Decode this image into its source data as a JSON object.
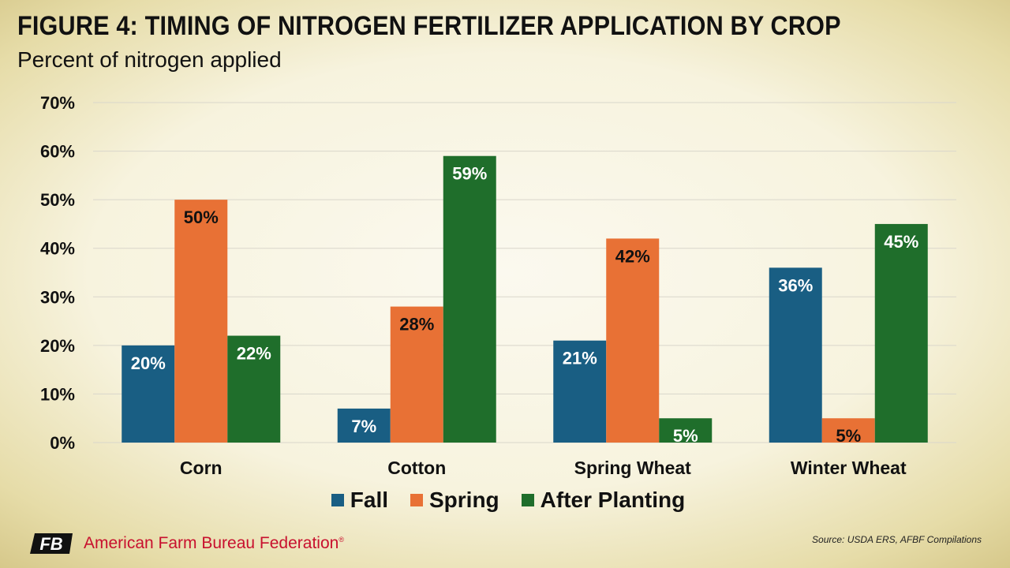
{
  "header": {
    "title": "FIGURE 4: TIMING OF NITROGEN FERTILIZER APPLICATION BY CROP",
    "subtitle": "Percent of nitrogen applied"
  },
  "footer": {
    "org_name": "American Farm Bureau Federation",
    "org_mark": "®",
    "logo_text": "FB",
    "source": "Source: USDA ERS, AFBF Compilations"
  },
  "colors": {
    "fall": "#195e83",
    "spring": "#e87135",
    "after_planting": "#1f6e2b",
    "brand_red": "#c8102e"
  },
  "chart_data": {
    "type": "bar",
    "categories": [
      "Corn",
      "Cotton",
      "Spring Wheat",
      "Winter Wheat"
    ],
    "series": [
      {
        "name": "Fall",
        "values": [
          20,
          7,
          21,
          36
        ],
        "labels": [
          "20%",
          "7%",
          "21%",
          "36%"
        ]
      },
      {
        "name": "Spring",
        "values": [
          50,
          28,
          42,
          5
        ],
        "labels": [
          "50%",
          "28%",
          "42%",
          "5%"
        ]
      },
      {
        "name": "After Planting",
        "values": [
          22,
          59,
          5,
          45
        ],
        "labels": [
          "22%",
          "59%",
          "5%",
          "45%"
        ]
      }
    ],
    "ylim": [
      0,
      70
    ],
    "yticks": [
      "0%",
      "10%",
      "20%",
      "30%",
      "40%",
      "50%",
      "60%",
      "70%"
    ],
    "grid": true,
    "legend_position": "bottom"
  }
}
